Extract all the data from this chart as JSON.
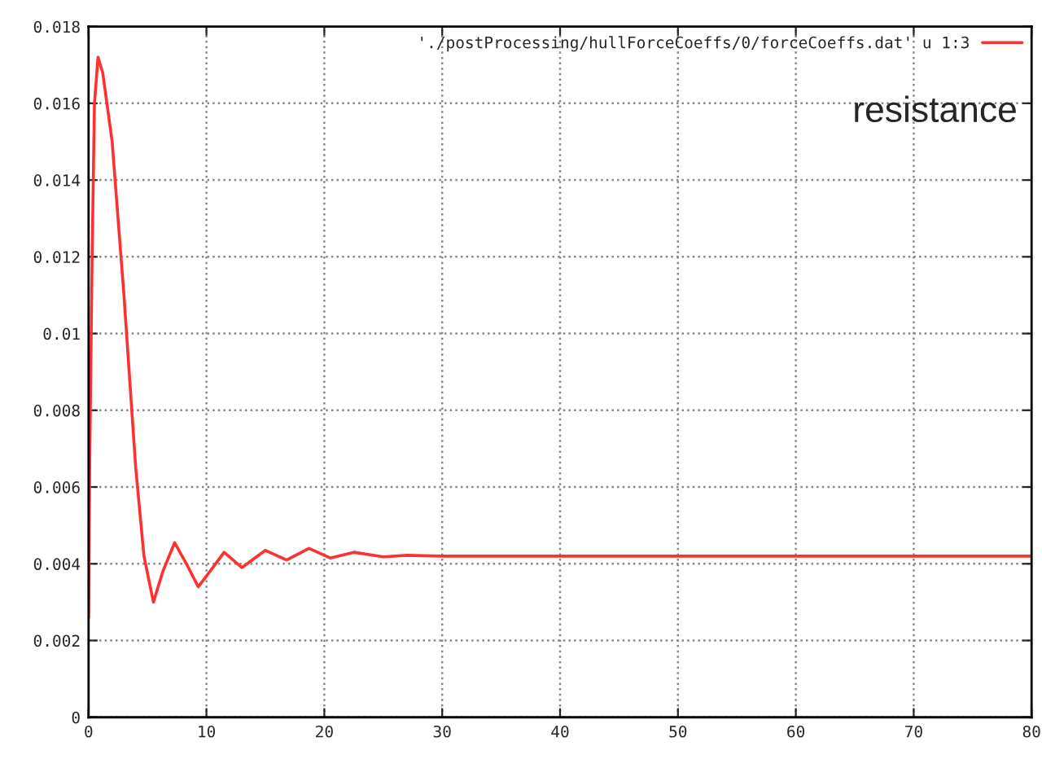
{
  "chart_data": {
    "type": "line",
    "annotations": [
      "resistance"
    ],
    "legend": "top right",
    "grid": true,
    "line_style": "solid",
    "marker": "none",
    "xlim": [
      0,
      80
    ],
    "xticks": [
      0,
      10,
      20,
      30,
      40,
      50,
      60,
      70,
      80
    ],
    "ylim": [
      0,
      0.018
    ],
    "yticks": [
      0,
      0.002,
      0.004,
      0.006,
      0.008,
      0.01,
      0.012,
      0.014,
      0.016,
      0.018
    ],
    "series": [
      {
        "name": "'./postProcessing/hullForceCoeffs/0/forceCoeffs.dat' u 1:3",
        "color": "#ff3030",
        "x": [
          0,
          0.1,
          0.3,
          0.5,
          0.8,
          1.2,
          2,
          3,
          4,
          4.7,
          5.5,
          6.3,
          7.3,
          8.3,
          9.3,
          10.3,
          11.5,
          13,
          15,
          16.8,
          18.7,
          20.5,
          22.5,
          25,
          27,
          30,
          35,
          40,
          45,
          50,
          55,
          60,
          65,
          70,
          75,
          80
        ],
        "values": [
          0.0026,
          0.0067,
          0.012,
          0.016,
          0.0172,
          0.0168,
          0.015,
          0.011,
          0.0065,
          0.0042,
          0.003,
          0.0038,
          0.00455,
          0.004,
          0.0034,
          0.0038,
          0.0043,
          0.0039,
          0.00435,
          0.0041,
          0.0044,
          0.00415,
          0.0043,
          0.00418,
          0.00422,
          0.0042,
          0.0042,
          0.0042,
          0.0042,
          0.0042,
          0.0042,
          0.0042,
          0.0042,
          0.0042,
          0.0042,
          0.0042
        ]
      }
    ]
  }
}
